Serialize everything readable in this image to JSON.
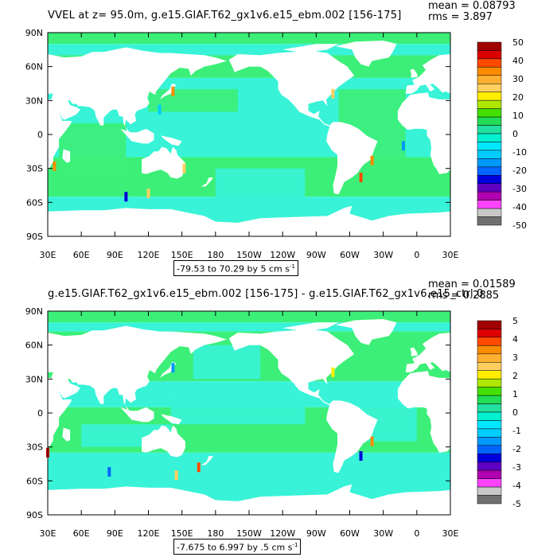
{
  "chart_data": [
    {
      "type": "heatmap",
      "title": "VVEL at z=  95.0m, g.e15.GIAF.T62_gx1v6.e15_ebm.002 [156-175]",
      "stats": {
        "mean": "mean = 0.08793",
        "rms": "rms = 3.897"
      },
      "range_label": "-79.53 to 70.29 by 5 cm s",
      "units_exp": "-1",
      "x_ticks": [
        "30E",
        "60E",
        "90E",
        "120E",
        "150E",
        "180",
        "150W",
        "120W",
        "90W",
        "60W",
        "30W",
        "0",
        "30E"
      ],
      "y_ticks": [
        "90N",
        "60N",
        "30N",
        "0",
        "30S",
        "60S",
        "90S"
      ],
      "colorbar_labels": [
        "50",
        "40",
        "30",
        "20",
        "10",
        "0",
        "-10",
        "-20",
        "-30",
        "-40",
        "-50"
      ],
      "colorbar_colors": [
        "#a00000",
        "#dd0000",
        "#ff4a00",
        "#ff8c00",
        "#ffb030",
        "#ffcf60",
        "#ffee00",
        "#aee800",
        "#44e000",
        "#22dd55",
        "#22e0a0",
        "#00f0d0",
        "#00e8ff",
        "#00ccff",
        "#0099ff",
        "#0066ff",
        "#0000dd",
        "#6000c0",
        "#b000b0",
        "#ff44ff",
        "#c8c8c8",
        "#707070"
      ],
      "grid": false
    },
    {
      "type": "heatmap",
      "title": "g.e15.GIAF.T62_gx1v6.e15_ebm.002 [156-175] - g.e15.GIAF.T62_gx1v6.e15_ctrl.0",
      "stats": {
        "mean": "mean = 0.01589",
        "rms": "rms = 0.2885"
      },
      "range_label": "-7.675 to 6.997 by .5 cm s",
      "units_exp": "-1",
      "x_ticks": [
        "30E",
        "60E",
        "90E",
        "120E",
        "150E",
        "180",
        "150W",
        "120W",
        "90W",
        "60W",
        "30W",
        "0",
        "30E"
      ],
      "y_ticks": [
        "90N",
        "60N",
        "30N",
        "0",
        "30S",
        "60S",
        "90S"
      ],
      "colorbar_labels": [
        "5",
        "4",
        "3",
        "2",
        "1",
        "0",
        "-1",
        "-2",
        "-3",
        "-4",
        "-5"
      ],
      "colorbar_colors": [
        "#a00000",
        "#dd0000",
        "#ff4a00",
        "#ff8c00",
        "#ffb030",
        "#ffcf60",
        "#ffee00",
        "#aee800",
        "#44e000",
        "#22dd55",
        "#22e0a0",
        "#00f0d0",
        "#00e8ff",
        "#00ccff",
        "#0099ff",
        "#0066ff",
        "#0000dd",
        "#6000c0",
        "#b000b0",
        "#ff44ff",
        "#c8c8c8",
        "#707070"
      ],
      "grid": false
    }
  ],
  "colors": {
    "ocean_main": "#3cef78",
    "ocean_alt": "#38f3d8",
    "land": "#ffffff"
  }
}
